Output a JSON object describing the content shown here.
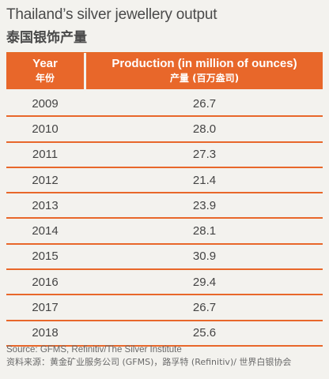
{
  "title": {
    "en": "Thailand’s silver jewellery output",
    "zh": "泰国银饰产量"
  },
  "table": {
    "headers": [
      {
        "en": "Year",
        "zh": "年份"
      },
      {
        "en": "Production (in million of ounces)",
        "zh": "产量 (百万盎司)"
      }
    ],
    "rows": [
      {
        "year": "2009",
        "value": "26.7"
      },
      {
        "year": "2010",
        "value": "28.0"
      },
      {
        "year": "2011",
        "value": "27.3"
      },
      {
        "year": "2012",
        "value": "21.4"
      },
      {
        "year": "2013",
        "value": "23.9"
      },
      {
        "year": "2014",
        "value": "28.1"
      },
      {
        "year": "2015",
        "value": "30.9"
      },
      {
        "year": "2016",
        "value": "29.4"
      },
      {
        "year": "2017",
        "value": "26.7"
      },
      {
        "year": "2018",
        "value": "25.6"
      }
    ]
  },
  "source": {
    "en": "Source: GFMS, Refinitiv/The Silver Institute",
    "zh": "资料来源：黄金矿业服务公司 (GFMS)，路孚特 (Refinitiv)/ 世界白银协会"
  },
  "colors": {
    "accent": "#e8672a",
    "background": "#f3f2ee"
  }
}
